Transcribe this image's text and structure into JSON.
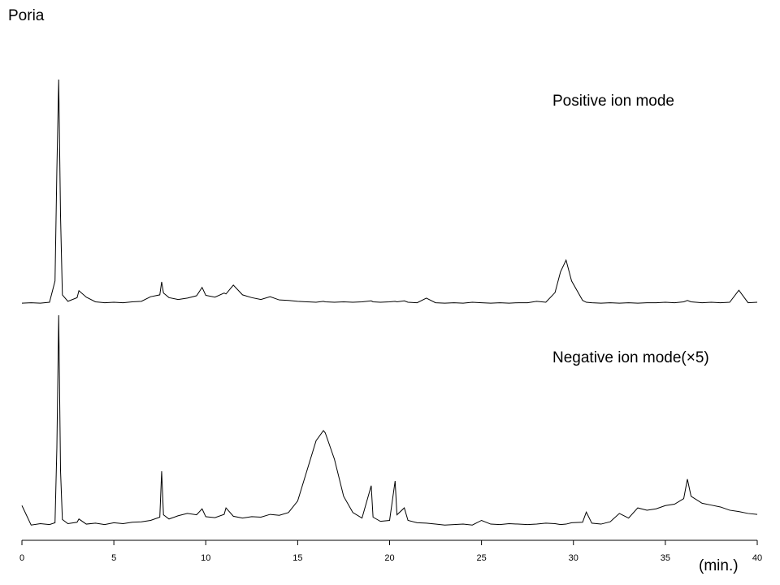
{
  "chart_data": {
    "type": "line",
    "title": "Poria",
    "x_label": "(min.)",
    "xlim": [
      0,
      40
    ],
    "xticks": [
      0,
      5,
      10,
      15,
      20,
      25,
      30,
      35,
      40
    ],
    "ylim": [
      0,
      100
    ],
    "x": [
      0,
      0.5,
      1,
      1.5,
      1.8,
      1.9,
      2.0,
      2.1,
      2.2,
      2.5,
      3,
      3.1,
      3.5,
      4,
      4.5,
      5,
      5.5,
      6,
      6.5,
      7,
      7.5,
      7.6,
      7.7,
      8,
      8.5,
      9,
      9.5,
      9.8,
      10,
      10.5,
      11,
      11.1,
      11.5,
      12,
      12.5,
      13,
      13.5,
      14,
      14.5,
      15,
      15.5,
      16,
      16.4,
      16.5,
      17,
      17.5,
      18,
      18.5,
      19,
      19.1,
      19.5,
      20,
      20.3,
      20.4,
      20.8,
      21,
      21.5,
      22,
      22.5,
      23,
      23.5,
      24,
      24.5,
      25,
      25.5,
      26,
      26.5,
      27,
      27.5,
      28,
      28.5,
      29,
      29.3,
      29.6,
      29.9,
      30.5,
      30.7,
      31,
      31.5,
      32,
      32.5,
      33,
      33.5,
      34,
      34.5,
      35,
      35.5,
      36,
      36.2,
      36.4,
      37,
      37.5,
      38,
      38.5,
      39,
      39.5,
      40
    ],
    "series": [
      {
        "name": "Positive ion mode",
        "color": "#000000",
        "values": [
          51.2,
          51.3,
          51.2,
          51.4,
          56,
          80,
          99.5,
          70,
          53,
          51.6,
          52.4,
          53.9,
          52.5,
          51.5,
          51.3,
          51.4,
          51.3,
          51.5,
          51.6,
          52.6,
          53,
          55.8,
          53.4,
          52.4,
          52,
          52.3,
          52.8,
          54.6,
          52.9,
          52.5,
          53.4,
          53.2,
          55.1,
          53.0,
          52.4,
          52.0,
          52.6,
          51.9,
          51.8,
          51.6,
          51.5,
          51.4,
          51.6,
          51.5,
          51.4,
          51.5,
          51.4,
          51.5,
          51.7,
          51.5,
          51.4,
          51.5,
          51.6,
          51.5,
          51.7,
          51.4,
          51.3,
          52.3,
          51.3,
          51.2,
          51.3,
          51.2,
          51.4,
          51.3,
          51.2,
          51.3,
          51.2,
          51.3,
          51.3,
          51.6,
          51.4,
          53.5,
          58,
          60.5,
          56,
          51.8,
          51.4,
          51.3,
          51.2,
          51.3,
          51.2,
          51.3,
          51.2,
          51.3,
          51.3,
          51.4,
          51.3,
          51.5,
          51.8,
          51.5,
          51.3,
          51.4,
          51.3,
          51.4,
          54.0,
          51.3,
          51.4
        ]
      },
      {
        "name": "Negative ion mode(×5)",
        "color": "#000000",
        "values": [
          7.5,
          3.3,
          3.6,
          3.4,
          3.8,
          20,
          48.6,
          15,
          4.5,
          3.6,
          3.9,
          4.6,
          3.5,
          3.7,
          3.4,
          3.8,
          3.6,
          3.9,
          4.0,
          4.3,
          5.0,
          14.9,
          5.5,
          4.6,
          5.3,
          5.8,
          5.5,
          6.8,
          5.1,
          4.9,
          5.6,
          7.0,
          5.2,
          4.8,
          5.1,
          5.0,
          5.6,
          5.4,
          6.0,
          8.5,
          15.0,
          21.5,
          23.7,
          23.2,
          17.5,
          9.5,
          6.0,
          4.8,
          11.8,
          5.0,
          4.1,
          4.3,
          12.8,
          5.5,
          7.0,
          4.3,
          3.8,
          3.7,
          3.5,
          3.3,
          3.4,
          3.5,
          3.3,
          4.3,
          3.5,
          3.4,
          3.6,
          3.5,
          3.4,
          3.5,
          3.7,
          3.6,
          3.4,
          3.5,
          3.8,
          3.9,
          6.1,
          3.7,
          3.5,
          4.0,
          5.8,
          4.8,
          7.0,
          6.5,
          6.8,
          7.5,
          7.8,
          9.0,
          13.2,
          9.5,
          8.0,
          7.6,
          7.2,
          6.5,
          6.2,
          5.8,
          5.6
        ]
      }
    ]
  }
}
